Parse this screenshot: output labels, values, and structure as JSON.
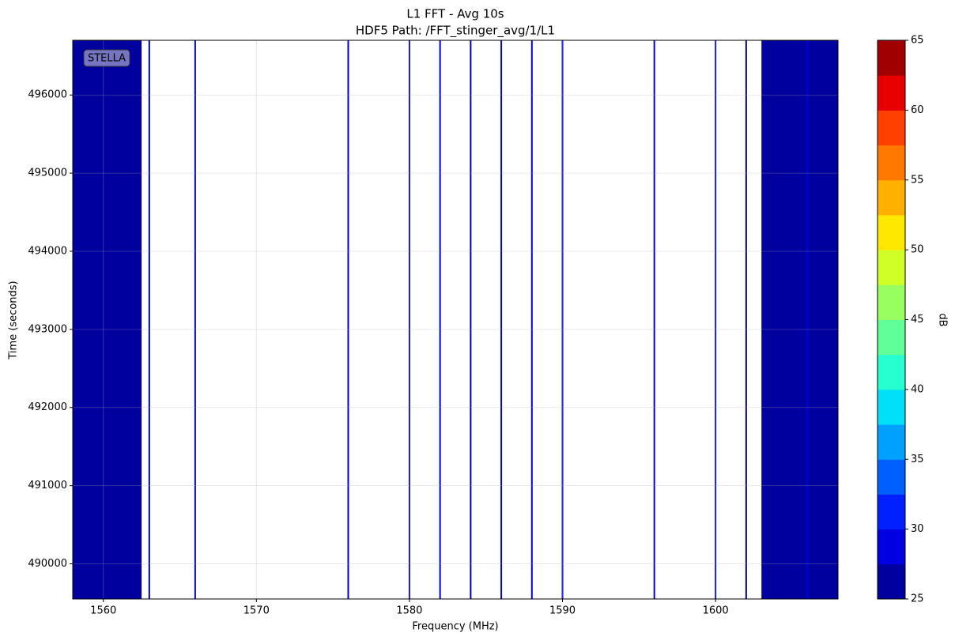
{
  "chart_data": {
    "type": "heatmap",
    "title": "L1 FFT - Avg 10s",
    "subtitle": "HDF5 Path: /FFT_stinger_avg/1/L1",
    "x_label": "Frequency (MHz)",
    "y_label": "Time (seconds)",
    "annotation": "STELLA",
    "xlim": [
      1558,
      1608
    ],
    "ylim": [
      489550,
      496700
    ],
    "xticks": [
      1560,
      1570,
      1580,
      1590,
      1600
    ],
    "yticks": [
      490000,
      491000,
      492000,
      493000,
      494000,
      495000,
      496000
    ],
    "grid": true,
    "bands": [
      {
        "x0": 1558,
        "x1": 1562.5,
        "value": 26
      },
      {
        "x0": 1603,
        "x1": 1608,
        "value": 26
      }
    ],
    "lines": [
      {
        "x": 1563,
        "value": 26
      },
      {
        "x": 1566,
        "value": 28
      },
      {
        "x": 1576,
        "value": 28
      },
      {
        "x": 1580,
        "value": 28
      },
      {
        "x": 1582,
        "value": 28
      },
      {
        "x": 1584,
        "value": 26
      },
      {
        "x": 1586,
        "value": 28
      },
      {
        "x": 1588,
        "value": 28
      },
      {
        "x": 1590,
        "value": 28
      },
      {
        "x": 1596,
        "value": 28
      },
      {
        "x": 1600,
        "value": 28
      },
      {
        "x": 1602,
        "value": 26
      },
      {
        "x": 1606,
        "value": 28
      }
    ],
    "colorbar_label": "dB",
    "levels": [
      25,
      27.5,
      30,
      32.5,
      35,
      37.5,
      40,
      42.5,
      45,
      47.5,
      50,
      52.5,
      55,
      57.5,
      60,
      62.5,
      65
    ],
    "level_colors": [
      "#00009f",
      "#0000e0",
      "#0020ff",
      "#0060ff",
      "#00a0ff",
      "#00e0f8",
      "#28ffd0",
      "#60ff98",
      "#98ff60",
      "#d0ff28",
      "#ffe800",
      "#ffb000",
      "#ff7800",
      "#ff4000",
      "#e80000",
      "#a00000"
    ],
    "cticks": [
      25,
      30,
      35,
      40,
      45,
      50,
      55,
      60,
      65
    ]
  }
}
